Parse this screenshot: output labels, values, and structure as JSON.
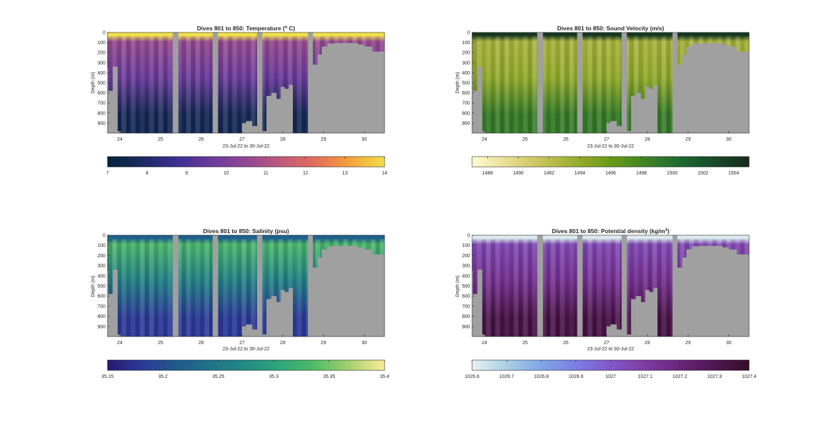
{
  "figure": {
    "panels": [
      {
        "title": "Dives 801 to 850: Temperature (",
        "title_sup": "o",
        "title_end": " C)",
        "ylabel": "Depth (m)",
        "xlabel": "23-Jul-22 to 30-Jul-22",
        "cmap": "thermal",
        "colorbar_ticks": [
          "7",
          "8",
          "9",
          "10",
          "11",
          "12",
          "13",
          "14"
        ]
      },
      {
        "title": "Dives 801 to 850: Sound Velocity (m/s)",
        "title_sup": "",
        "title_end": "",
        "ylabel": "Depth (m)",
        "xlabel": "23-Jul-22 to 30-Jul-22",
        "cmap": "speed",
        "colorbar_ticks": [
          "1488",
          "1490",
          "1492",
          "1494",
          "1496",
          "1498",
          "1500",
          "1502",
          "1504"
        ]
      },
      {
        "title": "Dives 801 to 850: Salinity (psu)",
        "title_sup": "",
        "title_end": "",
        "ylabel": "Depth (m)",
        "xlabel": "23-Jul-22 to 30-Jul-22",
        "cmap": "haline",
        "colorbar_ticks": [
          "35.15",
          "35.2",
          "35.25",
          "35.3",
          "35.35",
          "35.4"
        ]
      },
      {
        "title": "Dives 801 to 850: Potential density (kg/m",
        "title_sup": "3",
        "title_end": ")",
        "ylabel": "Depth (m)",
        "xlabel": "23-Jul-22 to 30-Jul-22",
        "cmap": "dense",
        "colorbar_ticks": [
          "1026.6",
          "1026.7",
          "1026.8",
          "1026.9",
          "1027",
          "1027.1",
          "1027.2",
          "1027.3",
          "1027.4"
        ]
      }
    ]
  },
  "chart_data": [
    {
      "type": "heatmap",
      "title": "Dives 801 to 850: Temperature (o C)",
      "xlabel": "23-Jul-22 to 30-Jul-22",
      "ylabel": "Depth (m)",
      "x_ticks": [
        "24",
        "25",
        "26",
        "27",
        "28",
        "29",
        "30"
      ],
      "y_ticks": [
        "0",
        "100",
        "200",
        "300",
        "400",
        "500",
        "600",
        "700",
        "800",
        "900"
      ],
      "xlim_days": [
        23.7,
        30.5
      ],
      "ylim": [
        0,
        1000
      ],
      "y_reversed": true,
      "colorbar": {
        "min": 7,
        "max": 14,
        "ticks": [
          7,
          8,
          9,
          10,
          11,
          12,
          13,
          14
        ]
      },
      "profile": {
        "surface": 14,
        "mixed_layer_bottom": 10.6,
        "mid": 9.6,
        "deep": 7.6
      }
    },
    {
      "type": "heatmap",
      "title": "Dives 801 to 850: Sound Velocity (m/s)",
      "xlabel": "23-Jul-22 to 30-Jul-22",
      "ylabel": "Depth (m)",
      "x_ticks": [
        "24",
        "25",
        "26",
        "27",
        "28",
        "29",
        "30"
      ],
      "y_ticks": [
        "0",
        "100",
        "200",
        "300",
        "400",
        "500",
        "600",
        "700",
        "800",
        "900"
      ],
      "xlim_days": [
        23.7,
        30.5
      ],
      "ylim": [
        0,
        1000
      ],
      "y_reversed": true,
      "colorbar": {
        "min": 1487,
        "max": 1505,
        "ticks": [
          1488,
          1490,
          1492,
          1494,
          1496,
          1498,
          1500,
          1502,
          1504
        ]
      },
      "profile": {
        "surface": 1504,
        "mixed_layer_bottom": 1493,
        "mid": 1494,
        "deep": 1499
      }
    },
    {
      "type": "heatmap",
      "title": "Dives 801 to 850: Salinity (psu)",
      "xlabel": "23-Jul-22 to 30-Jul-22",
      "ylabel": "Depth (m)",
      "x_ticks": [
        "24",
        "25",
        "26",
        "27",
        "28",
        "29",
        "30"
      ],
      "y_ticks": [
        "0",
        "100",
        "200",
        "300",
        "400",
        "500",
        "600",
        "700",
        "800",
        "900"
      ],
      "xlim_days": [
        23.7,
        30.5
      ],
      "ylim": [
        0,
        1000
      ],
      "y_reversed": true,
      "colorbar": {
        "min": 35.15,
        "max": 35.4,
        "ticks": [
          35.15,
          35.2,
          35.25,
          35.3,
          35.35,
          35.4
        ]
      },
      "profile": {
        "surface": 35.22,
        "mixed_layer_bottom": 35.33,
        "mid": 35.26,
        "deep": 35.18
      }
    },
    {
      "type": "heatmap",
      "title": "Dives 801 to 850: Potential density (kg/m3)",
      "xlabel": "23-Jul-22 to 30-Jul-22",
      "ylabel": "Depth (m)",
      "x_ticks": [
        "24",
        "25",
        "26",
        "27",
        "28",
        "29",
        "30"
      ],
      "y_ticks": [
        "0",
        "100",
        "200",
        "300",
        "400",
        "500",
        "600",
        "700",
        "800",
        "900"
      ],
      "xlim_days": [
        23.7,
        30.5
      ],
      "ylim": [
        0,
        1000
      ],
      "y_reversed": true,
      "colorbar": {
        "min": 1026.6,
        "max": 1027.4,
        "ticks": [
          1026.6,
          1026.7,
          1026.8,
          1026.9,
          1027,
          1027.1,
          1027.2,
          1027.3,
          1027.4
        ]
      },
      "profile": {
        "surface": 1026.62,
        "mixed_layer_bottom": 1027.05,
        "mid": 1027.15,
        "deep": 1027.33
      }
    }
  ],
  "colors": {
    "missing_data": "#a0a0a0",
    "axis": "#262626"
  }
}
